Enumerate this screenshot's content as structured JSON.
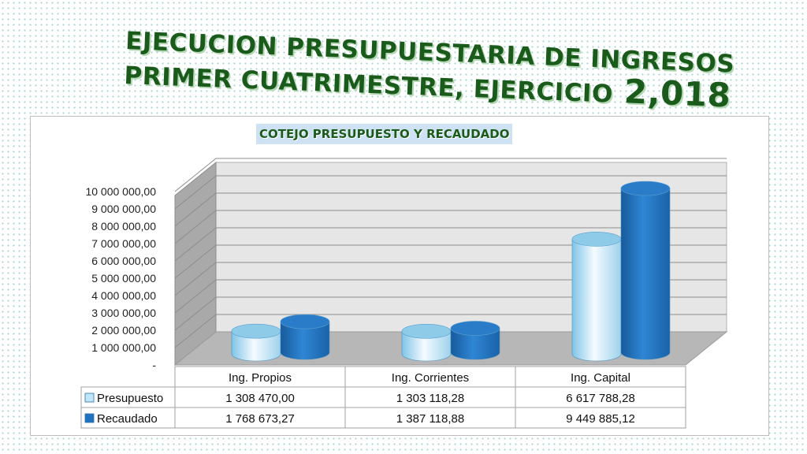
{
  "header": {
    "title_line1": "EJECUCION PRESUPUESTARIA DE INGRESOS",
    "title_line2": "PRIMER CUATRIMESTRE, EJERCICIO",
    "title_year": "2,018"
  },
  "chart_data": {
    "type": "bar",
    "title": "COTEJO PRESUPUESTO Y RECAUDADO",
    "categories": [
      "Ing. Propios",
      "Ing. Corrientes",
      "Ing. Capital"
    ],
    "series": [
      {
        "name": "Presupuesto",
        "values": [
          1308470.0,
          1303118.28,
          6617788.28
        ],
        "labels": [
          "1 308 470,00",
          "1 303 118,28",
          "6 617 788,28"
        ],
        "color": "#bfe6f7"
      },
      {
        "name": "Recaudado",
        "values": [
          1768673.27,
          1387118.88,
          9449885.12
        ],
        "labels": [
          "1 768 673,27",
          "1 387 118,88",
          "9 449 885,12"
        ],
        "color": "#1f72bf"
      }
    ],
    "ylim": [
      0,
      10000000
    ],
    "yticks": [
      0,
      1000000,
      2000000,
      3000000,
      4000000,
      5000000,
      6000000,
      7000000,
      8000000,
      9000000,
      10000000
    ],
    "ytick_labels": [
      "-",
      "1 000 000,00",
      "2 000 000,00",
      "3 000 000,00",
      "4 000 000,00",
      "5 000 000,00",
      "6 000 000,00",
      "7 000 000,00",
      "8 000 000,00",
      "9 000 000,00",
      "10 000 000,00"
    ],
    "grid": true,
    "legend": "data-table"
  }
}
